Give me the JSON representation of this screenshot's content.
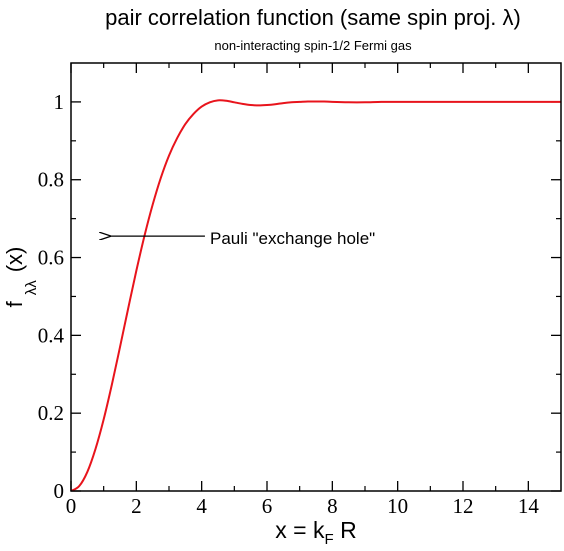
{
  "chart_data": {
    "type": "line",
    "title": "pair correlation function (same spin proj. λ)",
    "subtitle": "non-interacting spin-1/2 Fermi gas",
    "xlabel": {
      "main": "x = k",
      "sub": "F",
      "tail": " R"
    },
    "ylabel": {
      "main": "f",
      "sub": "λλ",
      "tail": "(x)"
    },
    "xlim": [
      0,
      15
    ],
    "ylim": [
      0,
      1.1
    ],
    "xticks": [
      0,
      2,
      4,
      6,
      8,
      10,
      12,
      14
    ],
    "xtick_labels": [
      "0",
      "2",
      "4",
      "6",
      "8",
      "10",
      "12",
      "14"
    ],
    "yticks": [
      0,
      0.2,
      0.4,
      0.6,
      0.8,
      1
    ],
    "ytick_labels": [
      "0",
      "0.2",
      "0.4",
      "0.6",
      "0.8",
      "1"
    ],
    "grid": false,
    "annotation": {
      "text": "Pauli \"exchange hole\"",
      "arrow_from": [
        4.1,
        0.655
      ],
      "arrow_to": [
        1.2,
        0.655
      ]
    },
    "series": [
      {
        "color": "#e8141c",
        "x": [
          0,
          0.25,
          0.5,
          0.75,
          1.0,
          1.25,
          1.5,
          1.75,
          2.0,
          2.25,
          2.5,
          2.75,
          3.0,
          3.25,
          3.5,
          3.75,
          4.0,
          4.25,
          4.5,
          4.75,
          5.0,
          5.25,
          5.5,
          5.75,
          6.0,
          6.25,
          6.5,
          6.75,
          7.0,
          7.25,
          7.5,
          7.75,
          8.0,
          8.5,
          9.0,
          9.5,
          10.0,
          10.5,
          11.0,
          11.5,
          12.0,
          12.5,
          13.0,
          13.5,
          14.0,
          14.5,
          15.0
        ],
        "y": [
          0,
          0.0125,
          0.049,
          0.108,
          0.184,
          0.273,
          0.37,
          0.469,
          0.566,
          0.656,
          0.736,
          0.805,
          0.862,
          0.907,
          0.943,
          0.969,
          0.988,
          0.999,
          1.004,
          1.003,
          0.999,
          0.995,
          0.992,
          0.991,
          0.992,
          0.994,
          0.997,
          0.999,
          1.0,
          1.001,
          1.001,
          1.001,
          1.0,
          0.999,
          0.999,
          1.0,
          1.0,
          1.0,
          1.0,
          1.0,
          1.0,
          1.0,
          1.0,
          1.0,
          1.0,
          1.0,
          1.0
        ]
      }
    ]
  }
}
